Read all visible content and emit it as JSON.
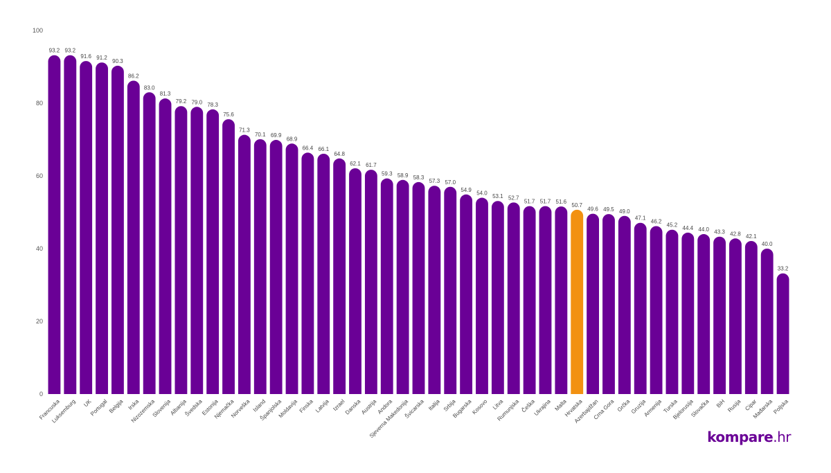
{
  "chart_data": {
    "type": "bar",
    "title": "",
    "xlabel": "",
    "ylabel": "",
    "ylim": [
      0,
      100
    ],
    "yticks": [
      0,
      20,
      40,
      60,
      80,
      100
    ],
    "grid": false,
    "bar_color": "#6a0096",
    "highlight_color": "#f29111",
    "highlight_category": "Hrvatska",
    "categories": [
      "Francuska",
      "Luksemburg",
      "UK",
      "Portugal",
      "Belgija",
      "Irska",
      "Nizozemska",
      "Slovenija",
      "Albanija",
      "Švedska",
      "Estonija",
      "Njemačka",
      "Norveška",
      "Island",
      "Španjolska",
      "Moldavija",
      "Finska",
      "Latvija",
      "Izrael",
      "Danska",
      "Austrija",
      "Andora",
      "Sjeverna Makedonija",
      "Švicarska",
      "Italija",
      "Srbija",
      "Bugarska",
      "Kosovo",
      "Litva",
      "Rumunjska",
      "Češka",
      "Ukrajina",
      "Malta",
      "Hrvatska",
      "Azerbajdžan",
      "Crna Gora",
      "Grčka",
      "Gruzija",
      "Armenija",
      "Turska",
      "Bjelorusija",
      "Slovačka",
      "BiH",
      "Rusija",
      "Cipar",
      "Mađarska",
      "Poljska"
    ],
    "values": [
      93.2,
      93.2,
      91.6,
      91.2,
      90.3,
      86.2,
      83.0,
      81.3,
      79.2,
      79.0,
      78.3,
      75.6,
      71.3,
      70.1,
      69.9,
      68.9,
      66.4,
      66.1,
      64.8,
      62.1,
      61.7,
      59.3,
      58.9,
      58.3,
      57.3,
      57.0,
      54.9,
      54.0,
      53.1,
      52.7,
      51.7,
      51.7,
      51.6,
      50.7,
      49.6,
      49.5,
      49.0,
      47.1,
      46.2,
      45.2,
      44.4,
      44.0,
      43.3,
      42.8,
      42.1,
      40.0,
      33.2
    ]
  },
  "brand": {
    "logo_main": "kompare",
    "logo_suffix": ".hr"
  }
}
